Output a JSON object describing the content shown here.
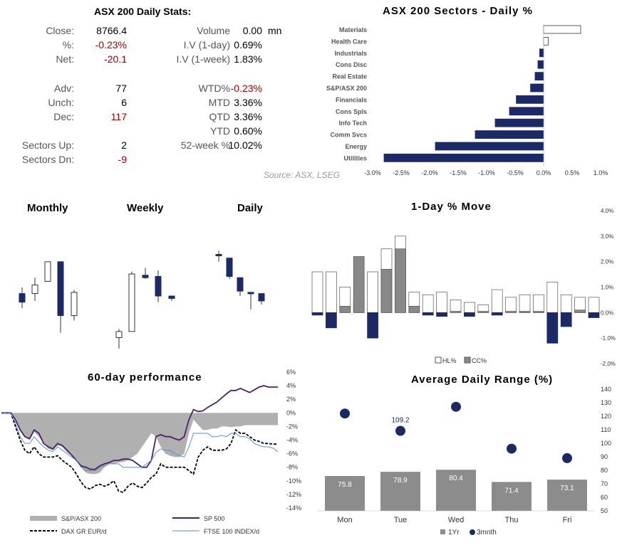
{
  "stats": {
    "title": "ASX 200 Daily Stats:",
    "rows_left": [
      {
        "label": "Close:",
        "value": "8766.4",
        "neg": false
      },
      {
        "label": "%:",
        "value": "-0.23%",
        "neg": true
      },
      {
        "label": "Net:",
        "value": "-20.1",
        "neg": true
      },
      {
        "label": "Adv:",
        "value": "77",
        "neg": false
      },
      {
        "label": "Unch:",
        "value": "6",
        "neg": false
      },
      {
        "label": "Dec:",
        "value": "117",
        "neg": true
      },
      {
        "label": "Sectors Up:",
        "value": "2",
        "neg": false
      },
      {
        "label": "Sectors Dn:",
        "value": "-9",
        "neg": true
      }
    ],
    "rows_right": [
      {
        "label": "Volume",
        "value": "0.00",
        "unit": "mn",
        "neg": false
      },
      {
        "label": "I.V (1-day)",
        "value": "0.69%",
        "unit": "",
        "neg": false
      },
      {
        "label": "I.V (1-week)",
        "value": "1.83%",
        "unit": "",
        "neg": false
      },
      {
        "label": "WTD%",
        "value": "-0.23%",
        "unit": "",
        "neg": true
      },
      {
        "label": "MTD",
        "value": "3.36%",
        "unit": "",
        "neg": false
      },
      {
        "label": "QTD",
        "value": "3.36%",
        "unit": "",
        "neg": false
      },
      {
        "label": "YTD",
        "value": "0.60%",
        "unit": "",
        "neg": false
      },
      {
        "label": "52-week %",
        "value": "10.02%",
        "unit": "",
        "neg": false
      }
    ],
    "source": "Source: ASX, LSEG"
  },
  "candles_titles": {
    "monthly": "Monthly",
    "weekly": "Weekly",
    "daily": "Daily"
  },
  "chart_data": [
    {
      "type": "bar",
      "orientation": "horizontal",
      "title": "ASX 200 Sectors - Daily %",
      "categories": [
        "Materials",
        "Health Care",
        "Industrials",
        "Cons Disc",
        "Real Estate",
        "S&P/ASX 200",
        "Financials",
        "Cons Spls",
        "Info Tech",
        "Comm Svcs",
        "Energy",
        "Utilities"
      ],
      "values": [
        0.65,
        0.08,
        -0.07,
        -0.1,
        -0.15,
        -0.23,
        -0.48,
        -0.6,
        -0.85,
        -1.2,
        -1.9,
        -2.8
      ],
      "xlim": [
        -3.0,
        1.0
      ],
      "xticks": [
        "-3.0%",
        "-2.5%",
        "-2.0%",
        "-1.5%",
        "-1.0%",
        "-0.5%",
        "0.0%",
        "0.5%",
        "1.0%"
      ],
      "colors": {
        "positive": "#ffffff",
        "negative": "#1b2a66"
      }
    },
    {
      "type": "candlestick",
      "title": "Monthly",
      "candles": [
        {
          "o": 0.45,
          "h": 0.5,
          "l": 0.33,
          "c": 0.38
        },
        {
          "o": 0.45,
          "h": 0.58,
          "l": 0.39,
          "c": 0.52
        },
        {
          "o": 0.55,
          "h": 0.71,
          "l": 0.55,
          "c": 0.71
        },
        {
          "o": 0.71,
          "h": 0.71,
          "l": 0.13,
          "c": 0.27
        },
        {
          "o": 0.27,
          "h": 0.48,
          "l": 0.23,
          "c": 0.46
        }
      ]
    },
    {
      "type": "candlestick",
      "title": "Weekly",
      "candles": [
        {
          "o": 0.09,
          "h": 0.16,
          "l": 0.0,
          "c": 0.14
        },
        {
          "o": 0.14,
          "h": 0.63,
          "l": 0.14,
          "c": 0.61
        },
        {
          "o": 0.6,
          "h": 0.66,
          "l": 0.57,
          "c": 0.58
        },
        {
          "o": 0.59,
          "h": 0.64,
          "l": 0.38,
          "c": 0.43
        },
        {
          "o": 0.43,
          "h": 0.43,
          "l": 0.39,
          "c": 0.41
        }
      ]
    },
    {
      "type": "candlestick",
      "title": "Daily",
      "candles": [
        {
          "o": 0.77,
          "h": 0.8,
          "l": 0.71,
          "c": 0.76
        },
        {
          "o": 0.74,
          "h": 0.74,
          "l": 0.57,
          "c": 0.59
        },
        {
          "o": 0.58,
          "h": 0.58,
          "l": 0.43,
          "c": 0.47
        },
        {
          "o": 0.46,
          "h": 0.46,
          "l": 0.32,
          "c": 0.45
        },
        {
          "o": 0.45,
          "h": 0.45,
          "l": 0.36,
          "c": 0.39
        }
      ]
    },
    {
      "type": "bar",
      "title": "1-Day % Move",
      "series": [
        {
          "name": "HL%",
          "values": [
            1.6,
            1.6,
            1.0,
            0.5,
            1.6,
            2.5,
            3.0,
            0.8,
            0.7,
            0.8,
            0.5,
            0.4,
            0.3,
            0.9,
            0.6,
            0.7,
            0.7,
            1.2,
            0.7,
            0.6,
            0.6
          ]
        },
        {
          "name": "CC%",
          "values": [
            -0.1,
            -0.6,
            0.25,
            2.2,
            -1.0,
            1.7,
            2.5,
            0.25,
            -0.1,
            -0.15,
            0.05,
            -0.15,
            0.05,
            -0.1,
            0.05,
            0.05,
            0.05,
            -1.2,
            -0.55,
            0.1,
            -0.2
          ]
        }
      ],
      "ylim": [
        -2.0,
        4.0
      ],
      "yticks": [
        "4.0%",
        "3.0%",
        "2.0%",
        "1.0%",
        "0.0%",
        "-1.0%",
        "-2.0%"
      ],
      "colors": {
        "hl_fill": "#ffffff",
        "cc_pos": "#888888",
        "cc_neg": "#1b2a66"
      }
    },
    {
      "type": "line",
      "title": "60-day performance",
      "series": [
        {
          "name": "S&P/ASX 200",
          "style": "area",
          "values": [
            0.0,
            0.0,
            0.0,
            -1.0,
            -2.5,
            -3.5,
            -4.0,
            -2.8,
            -3.5,
            -4.5,
            -5.3,
            -5.5,
            -4.8,
            -5.0,
            -5.8,
            -6.3,
            -7.0,
            -8.0,
            -8.8,
            -9.0,
            -9.0,
            -8.8,
            -8.0,
            -7.5,
            -7.5,
            -7.3,
            -7.2,
            -7.0,
            -6.5,
            -6.0,
            -5.0,
            -4.0,
            -3.0,
            -3.5,
            -5.0,
            -6.0,
            -6.3,
            -6.5,
            -6.5,
            -6.0,
            -3.0,
            -1.0,
            -1.8,
            -2.5,
            -2.5,
            -2.3,
            -2.3,
            -2.0,
            -2.0,
            -2.1,
            -2.0,
            -2.0,
            -1.8,
            -1.8,
            -1.8,
            -1.8,
            -1.8,
            -1.8,
            -1.8,
            -1.8
          ]
        },
        {
          "name": "SP 500",
          "style": "line",
          "values": [
            0.0,
            0.0,
            0.0,
            -1.0,
            -2.5,
            -3.5,
            -3.8,
            -2.5,
            -3.0,
            -4.5,
            -5.0,
            -5.3,
            -4.5,
            -4.8,
            -5.5,
            -6.2,
            -7.0,
            -7.8,
            -8.0,
            -8.3,
            -8.3,
            -7.8,
            -7.5,
            -7.3,
            -7.0,
            -7.0,
            -6.8,
            -6.8,
            -7.0,
            -7.5,
            -8.0,
            -8.0,
            -7.0,
            -3.5,
            -3.2,
            -3.5,
            -3.5,
            -3.8,
            -4.0,
            -3.5,
            -1.0,
            0.5,
            0.2,
            0.3,
            0.8,
            1.2,
            1.6,
            2.2,
            2.8,
            3.3,
            3.3,
            3.6,
            3.3,
            3.0,
            3.4,
            3.8,
            4.0,
            3.8,
            3.8,
            3.8
          ]
        },
        {
          "name": "DAX GR EUR/d",
          "style": "dashed",
          "values": [
            0.0,
            0.0,
            0.0,
            -2.0,
            -4.0,
            -5.5,
            -6.0,
            -5.0,
            -6.0,
            -6.5,
            -6.5,
            -6.5,
            -6.3,
            -7.0,
            -7.5,
            -8.0,
            -9.0,
            -10.2,
            -11.0,
            -11.2,
            -10.7,
            -10.5,
            -10.8,
            -10.5,
            -10.0,
            -11.5,
            -11.7,
            -10.8,
            -10.3,
            -10.8,
            -11.0,
            -10.3,
            -9.5,
            -9.0,
            -7.5,
            -8.0,
            -8.0,
            -8.0,
            -8.0,
            -8.0,
            -8.5,
            -9.0,
            -6.5,
            -5.5,
            -5.0,
            -5.5,
            -5.5,
            -5.5,
            -5.3,
            -4.5,
            -2.5,
            -3.0,
            -3.0,
            -3.5,
            -4.0,
            -4.2,
            -4.5,
            -4.5,
            -4.6,
            -4.6
          ]
        },
        {
          "name": "FTSE 100 INDEX/d",
          "style": "line",
          "values": [
            0.0,
            0.0,
            0.0,
            -1.5,
            -3.5,
            -4.5,
            -4.5,
            -3.5,
            -4.3,
            -5.0,
            -5.5,
            -5.7,
            -5.0,
            -5.5,
            -6.0,
            -6.5,
            -7.0,
            -8.0,
            -8.5,
            -8.5,
            -8.5,
            -8.0,
            -7.8,
            -7.5,
            -7.5,
            -7.5,
            -8.0,
            -8.0,
            -8.0,
            -8.0,
            -8.0,
            -7.5,
            -7.0,
            -5.8,
            -5.3,
            -5.5,
            -5.5,
            -6.0,
            -6.3,
            -6.5,
            -5.0,
            -3.0,
            -3.0,
            -3.0,
            -3.0,
            -3.5,
            -3.5,
            -3.3,
            -3.5,
            -3.0,
            -3.0,
            -3.5,
            -3.5,
            -3.8,
            -4.5,
            -4.8,
            -5.0,
            -5.0,
            -5.2,
            -5.7
          ]
        }
      ],
      "ylim": [
        -14,
        6
      ],
      "yticks": [
        "6%",
        "4%",
        "2%",
        "0%",
        "-2%",
        "-4%",
        "-6%",
        "-8%",
        "-10%",
        "-12%",
        "-14%"
      ],
      "colors": {
        "asx": "#b0b0b0",
        "sp500": "#4a2366",
        "dax": "#000000",
        "ftse": "#5b8fd6"
      }
    },
    {
      "type": "bar",
      "title": "Average Daily Range (%)",
      "categories": [
        "Mon",
        "Tue",
        "Wed",
        "Thu",
        "Fri"
      ],
      "series": [
        {
          "name": "1Yr",
          "values": [
            75.8,
            78.9,
            80.4,
            71.4,
            73.1
          ]
        },
        {
          "name": "3mnth",
          "values": [
            122,
            109.2,
            127,
            96,
            89
          ]
        }
      ],
      "point_labels": [
        "",
        "109.2",
        "",
        "",
        ""
      ],
      "bar_labels": [
        "75.8",
        "78.9",
        "80.4",
        "71.4",
        "73.1"
      ],
      "ylim": [
        50,
        140
      ],
      "yticks": [
        "140",
        "130",
        "120",
        "110",
        "100",
        "90",
        "80",
        "70",
        "60",
        "50"
      ],
      "colors": {
        "bar": "#8c8c8c",
        "dot": "#1b2a66"
      }
    }
  ]
}
